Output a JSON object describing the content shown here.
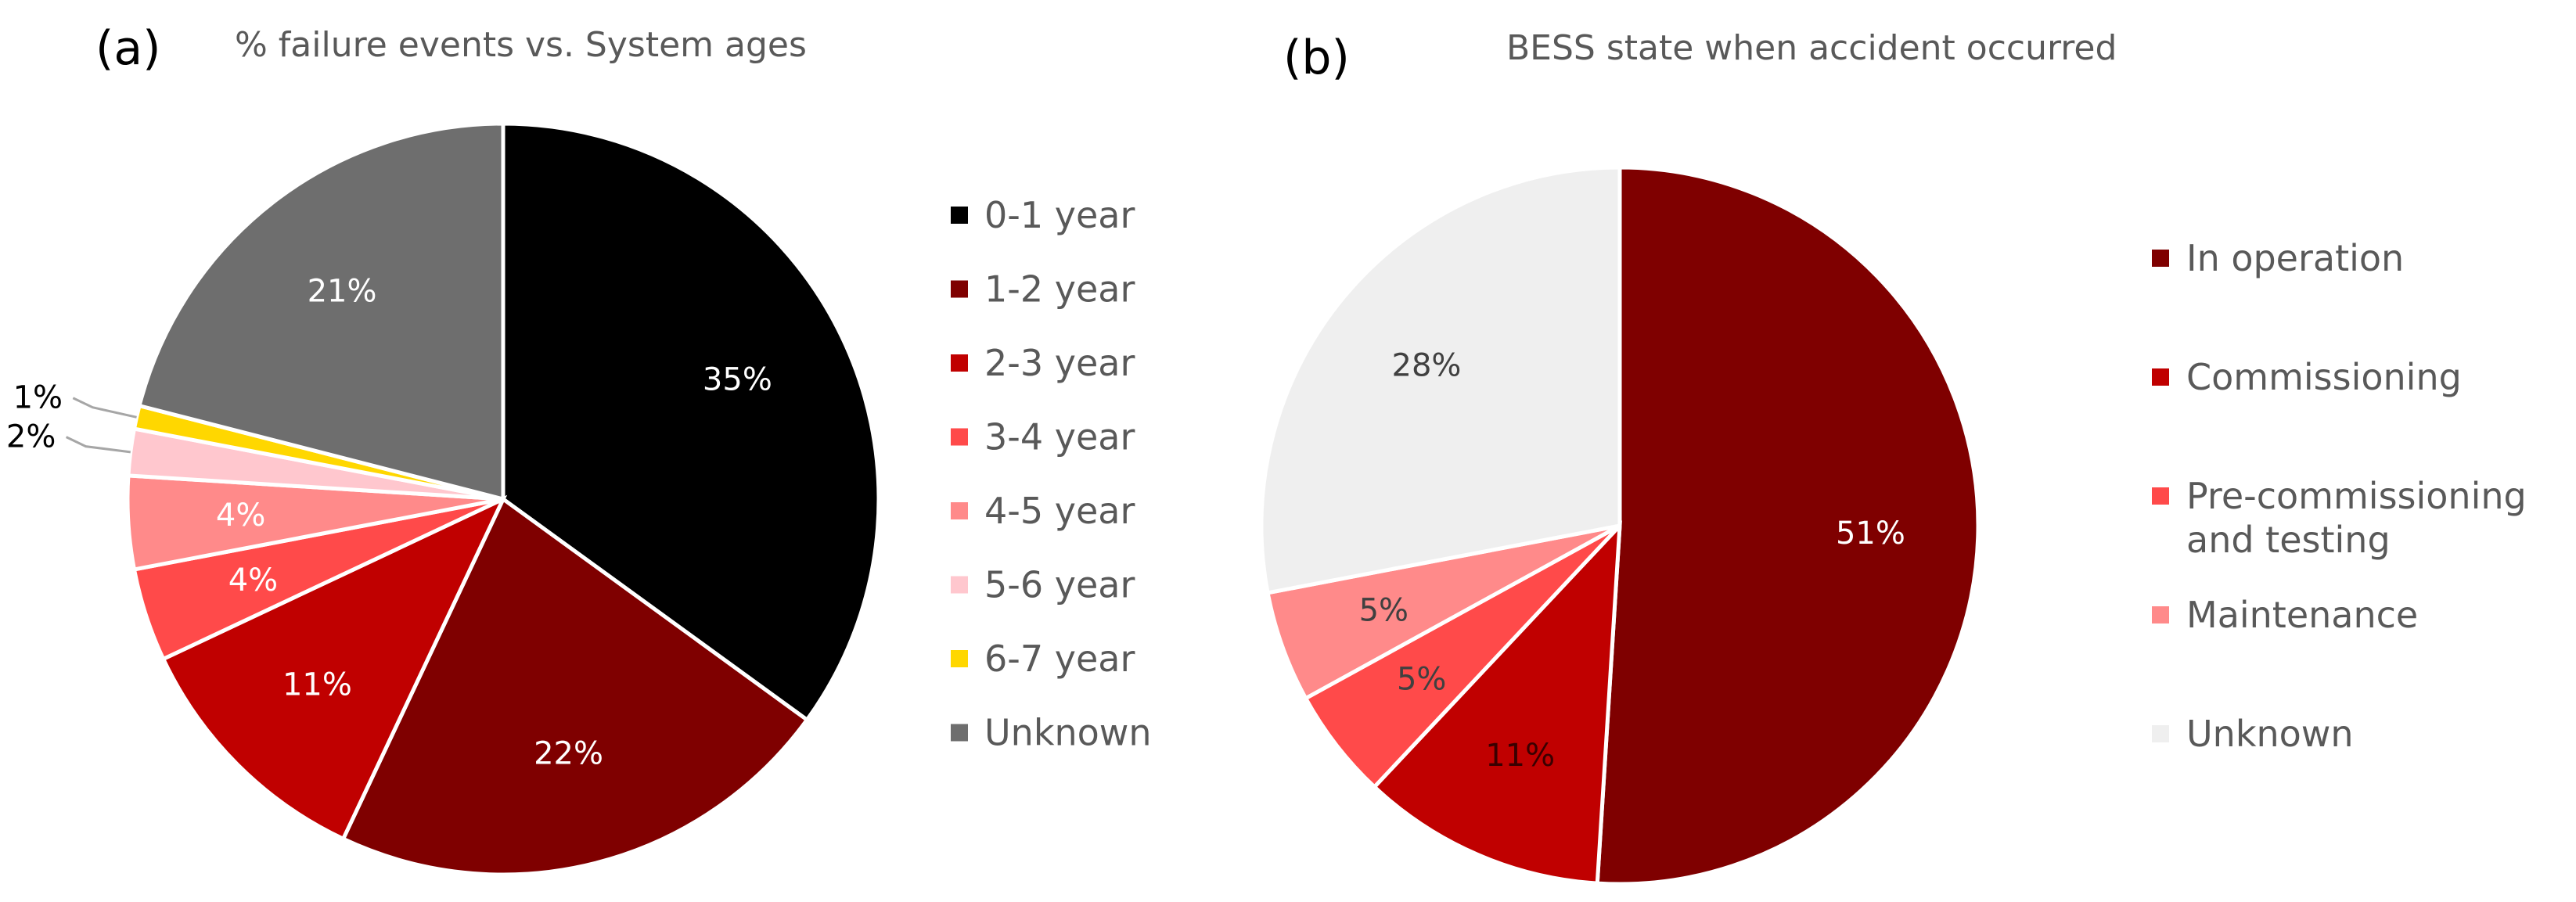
{
  "chart_data": [
    {
      "type": "pie",
      "panel_label": "(a)",
      "title": "% failure events vs. System ages",
      "start_angle_deg": 0,
      "direction": "clockwise",
      "legend_position": "right",
      "slices": [
        {
          "label": "0-1 year",
          "value": 35,
          "value_label": "35%",
          "color": "#000000",
          "text_color": "#ffffff"
        },
        {
          "label": "1-2 year",
          "value": 22,
          "value_label": "22%",
          "color": "#7f0000",
          "text_color": "#ffffff"
        },
        {
          "label": "2-3 year",
          "value": 11,
          "value_label": "11%",
          "color": "#c00000",
          "text_color": "#ffffff"
        },
        {
          "label": "3-4 year",
          "value": 4,
          "value_label": "4%",
          "color": "#ff4a4a",
          "text_color": "#ffffff"
        },
        {
          "label": "4-5 year",
          "value": 4,
          "value_label": "4%",
          "color": "#ff8a8a",
          "text_color": "#ffffff"
        },
        {
          "label": "5-6 year",
          "value": 2,
          "value_label": "2%",
          "color": "#ffc7ce",
          "text_color": "#000000"
        },
        {
          "label": "6-7 year",
          "value": 1,
          "value_label": "1%",
          "color": "#ffd700",
          "text_color": "#000000"
        },
        {
          "label": "Unknown",
          "value": 21,
          "value_label": "21%",
          "color": "#6e6e6e",
          "text_color": "#ffffff"
        }
      ]
    },
    {
      "type": "pie",
      "panel_label": "(b)",
      "title": "BESS state when accident occurred",
      "start_angle_deg": 0,
      "direction": "clockwise",
      "legend_position": "right",
      "slices": [
        {
          "label": "In operation",
          "value": 51,
          "value_label": "51%",
          "color": "#7f0000",
          "text_color": "#ffffff"
        },
        {
          "label": "Commissioning",
          "value": 11,
          "value_label": "11%",
          "color": "#c00000",
          "text_color": "#3a0000"
        },
        {
          "label": "Pre-commissioning and testing",
          "legend_lines": [
            "Pre-commissioning",
            "and testing"
          ],
          "value": 5,
          "value_label": "5%",
          "color": "#ff4a4a",
          "text_color": "#404040"
        },
        {
          "label": "Maintenance",
          "value": 5,
          "value_label": "5%",
          "color": "#ff8a8a",
          "text_color": "#404040"
        },
        {
          "label": "Unknown",
          "value": 28,
          "value_label": "28%",
          "color": "#efefef",
          "text_color": "#404040"
        }
      ]
    }
  ]
}
